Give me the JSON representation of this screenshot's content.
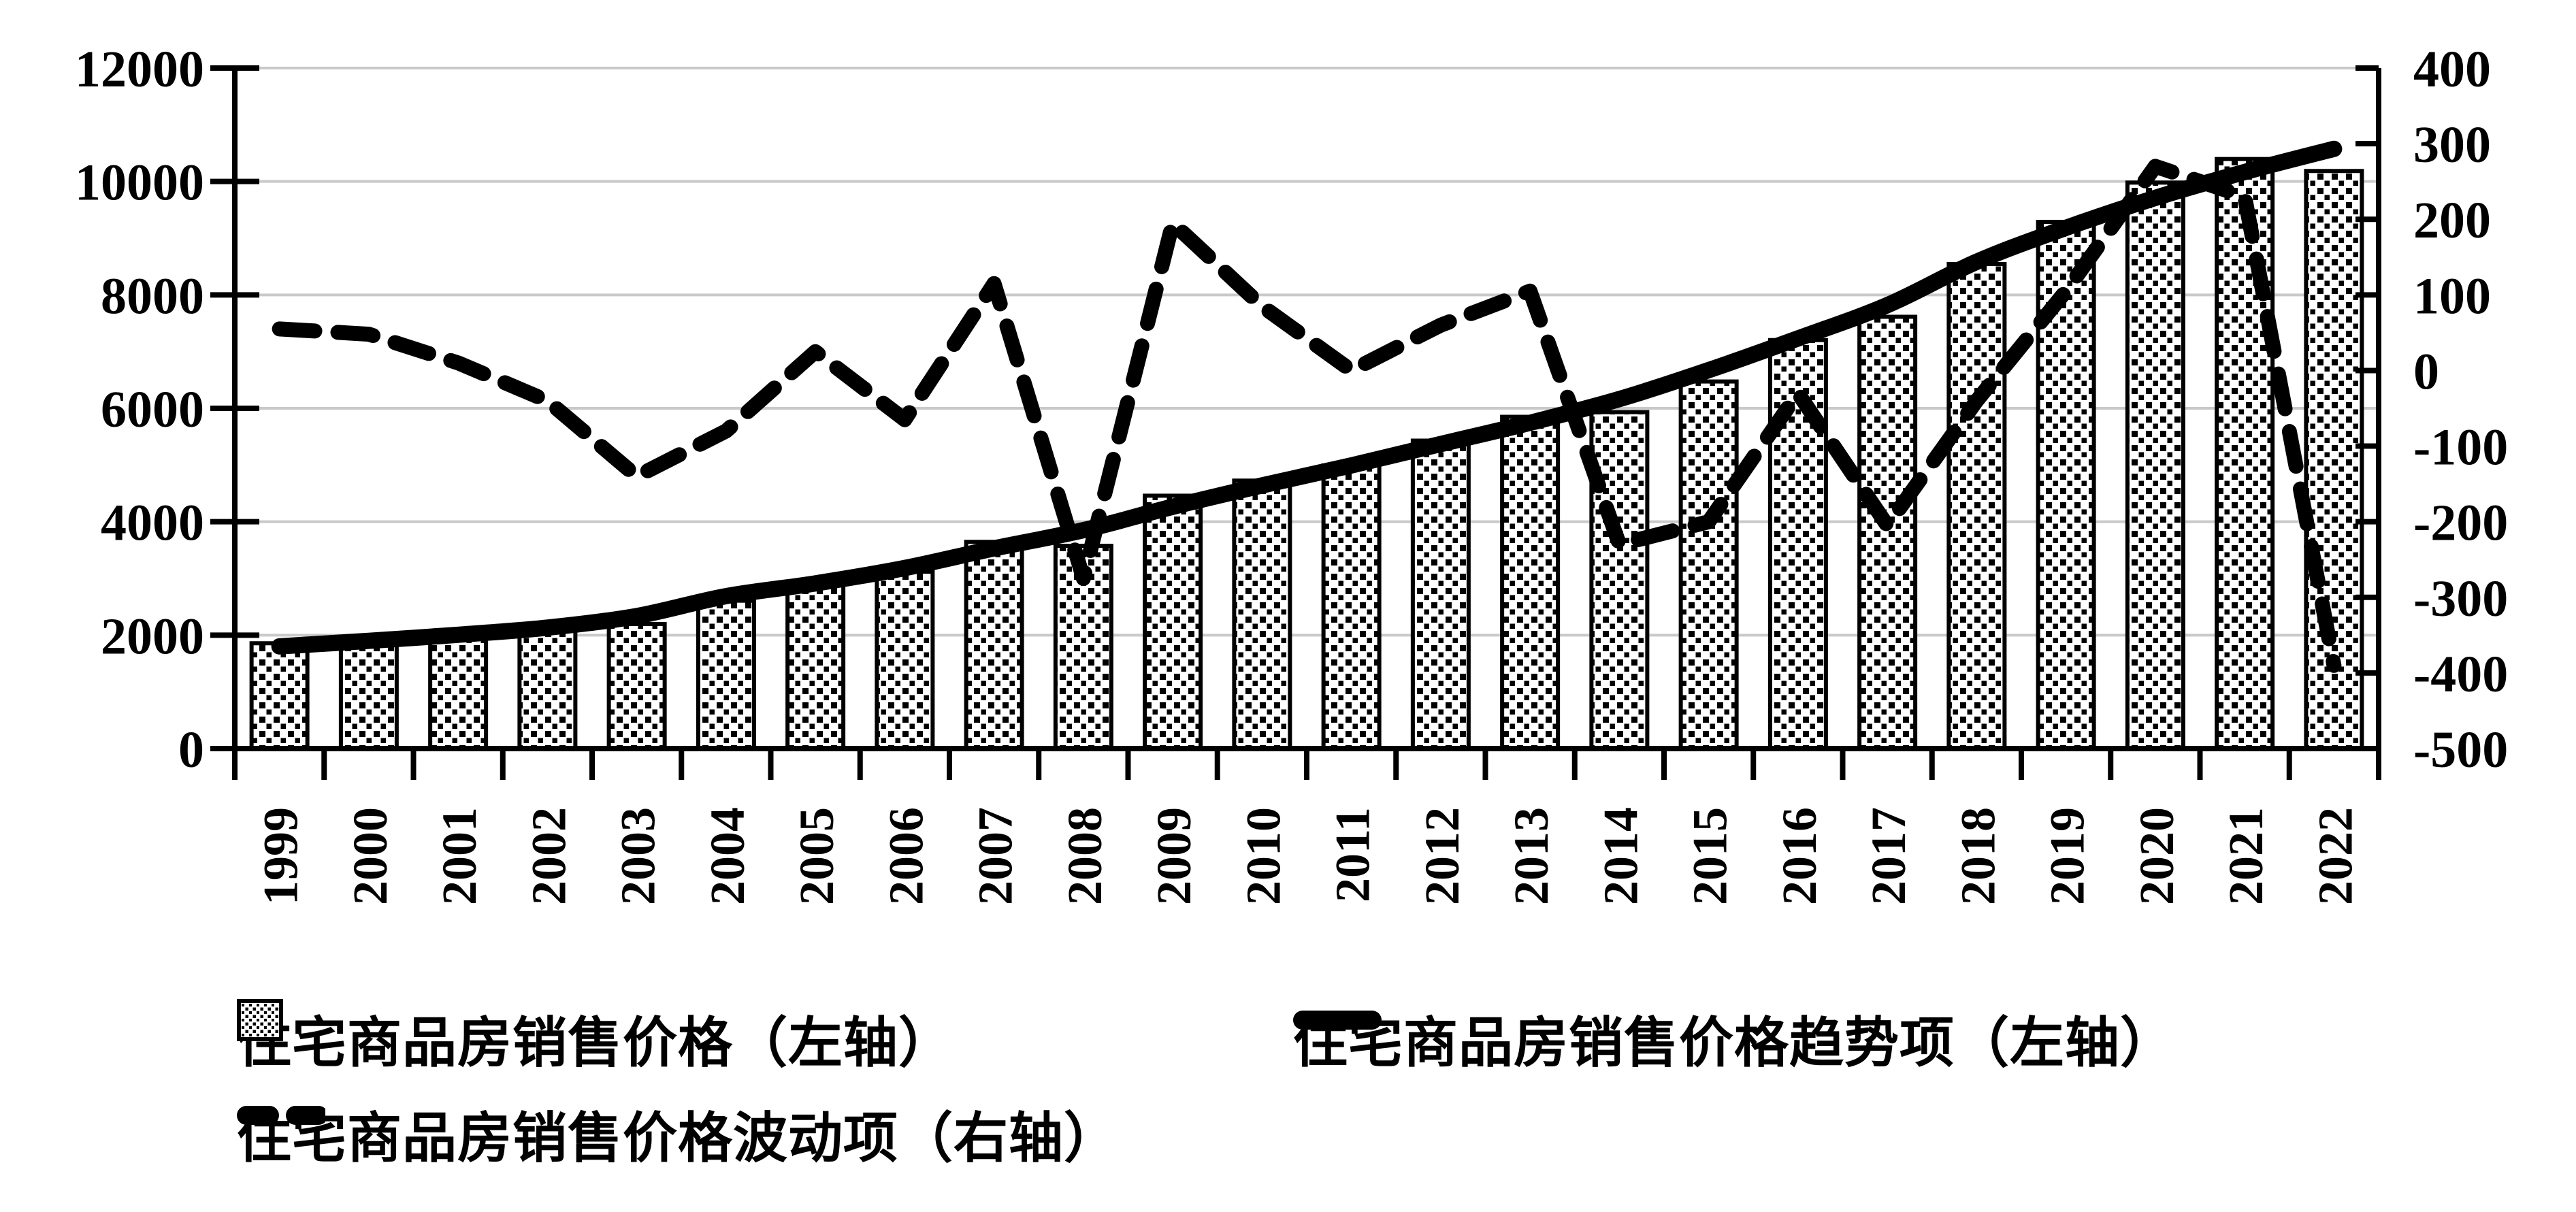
{
  "chart_data": {
    "type": "bar",
    "title": "",
    "xlabel": "",
    "ylabel_left": "",
    "ylabel_right": "",
    "grid": true,
    "legend_position": "bottom",
    "categories": [
      "1999",
      "2000",
      "2001",
      "2002",
      "2003",
      "2004",
      "2005",
      "2006",
      "2007",
      "2008",
      "2009",
      "2010",
      "2011",
      "2012",
      "2013",
      "2014",
      "2015",
      "2016",
      "2017",
      "2018",
      "2019",
      "2020",
      "2021",
      "2022"
    ],
    "left_axis": {
      "min": 0,
      "max": 12000,
      "step": 2000,
      "tick_labels": [
        "0",
        "2000",
        "4000",
        "6000",
        "8000",
        "10000",
        "12000"
      ]
    },
    "right_axis": {
      "min": -500,
      "max": 400,
      "step": 100,
      "tick_labels": [
        "-500",
        "-400",
        "-300",
        "-200",
        "-100",
        "0",
        "100",
        "200",
        "300",
        "400"
      ]
    },
    "series": [
      {
        "name": "住宅商品房销售价格（左轴）",
        "type": "bar",
        "axis": "left",
        "style": "dotted-pattern-bar",
        "values": [
          1857,
          1948,
          2017,
          2092,
          2197,
          2608,
          2937,
          3119,
          3645,
          3576,
          4459,
          4725,
          4993,
          5430,
          5850,
          5933,
          6473,
          7203,
          7614,
          8544,
          9287,
          9980,
          10396,
          10185
        ]
      },
      {
        "name": "住宅商品房销售价格趋势项（左轴）",
        "type": "line",
        "axis": "left",
        "style": "solid-thick-line",
        "values": [
          1802,
          1900,
          2007,
          2132,
          2337,
          2688,
          2912,
          3184,
          3530,
          3851,
          4264,
          4640,
          4993,
          5370,
          5745,
          6163,
          6673,
          7233,
          7819,
          8584,
          9182,
          9710,
          10166,
          10575
        ]
      },
      {
        "name": "住宅商品房销售价格波动项（右轴）",
        "type": "line",
        "axis": "right",
        "style": "dashed-thick-line",
        "values": [
          55,
          48,
          10,
          -40,
          -140,
          -80,
          25,
          -65,
          115,
          -275,
          195,
          85,
          0,
          60,
          105,
          -230,
          -200,
          -30,
          -205,
          -40,
          105,
          270,
          230,
          -390
        ]
      }
    ],
    "colors": {
      "series_color": "#000000",
      "gridline": "#c9c9c9",
      "background": "#ffffff",
      "bar_fill": "white-with-black-dots"
    }
  },
  "legend": {
    "items": [
      {
        "label": "住宅商品房销售价格（左轴）",
        "swatch": "dotted-bar-swatch"
      },
      {
        "label": "住宅商品房销售价格趋势项（左轴）",
        "swatch": "solid-line-swatch"
      },
      {
        "label": "住宅商品房销售价格波动项（右轴）",
        "swatch": "dashed-line-swatch"
      }
    ]
  }
}
